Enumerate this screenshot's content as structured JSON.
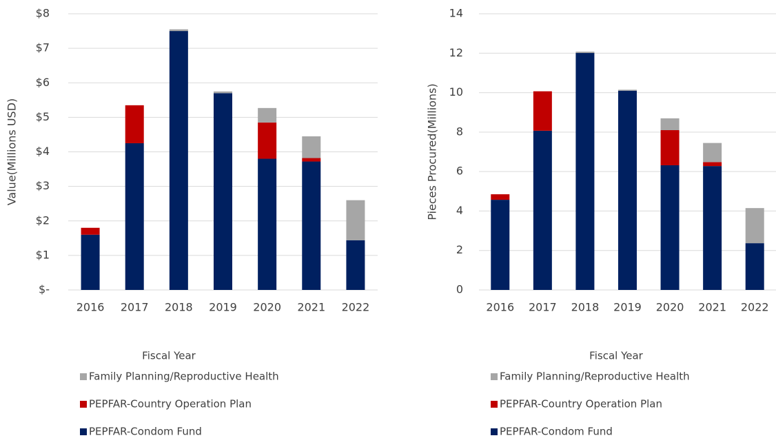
{
  "chart_data": [
    {
      "type": "bar",
      "stacked": true,
      "ylabel": "Value(Millions USD)",
      "xlabel": "Fiscal Year",
      "categories": [
        "2016",
        "2017",
        "2018",
        "2019",
        "2020",
        "2021",
        "2022"
      ],
      "series": [
        {
          "name": "PEPFAR-Condom Fund",
          "color": "#002060",
          "values": [
            1.6,
            4.25,
            7.5,
            5.7,
            3.8,
            3.72,
            1.44
          ]
        },
        {
          "name": "PEPFAR-Country Operation Plan",
          "color": "#c00000",
          "values": [
            0.2,
            1.1,
            0,
            0,
            1.05,
            0.1,
            0
          ]
        },
        {
          "name": "Family Planning/Reproductive Health",
          "color": "#a6a6a6",
          "values": [
            0,
            0,
            0.05,
            0.05,
            0.42,
            0.63,
            1.16
          ]
        }
      ],
      "ylim": [
        0,
        8
      ],
      "yticks": [
        {
          "value": 0,
          "label": "$-"
        },
        {
          "value": 1,
          "label": "$1"
        },
        {
          "value": 2,
          "label": "$2"
        },
        {
          "value": 3,
          "label": "$3"
        },
        {
          "value": 4,
          "label": "$4"
        },
        {
          "value": 5,
          "label": "$5"
        },
        {
          "value": 6,
          "label": "$6"
        },
        {
          "value": 7,
          "label": "$7"
        },
        {
          "value": 8,
          "label": "$8"
        }
      ],
      "grid": true
    },
    {
      "type": "bar",
      "stacked": true,
      "ylabel": "Pieces Procured(Millions)",
      "xlabel": "Fiscal Year",
      "categories": [
        "2016",
        "2017",
        "2018",
        "2019",
        "2020",
        "2021",
        "2022"
      ],
      "series": [
        {
          "name": "PEPFAR-Condom Fund",
          "color": "#002060",
          "values": [
            4.57,
            8.07,
            12.01,
            10.1,
            6.32,
            6.28,
            2.37
          ]
        },
        {
          "name": "PEPFAR-Country Operation Plan",
          "color": "#c00000",
          "values": [
            0.28,
            2.0,
            0,
            0,
            1.78,
            0.2,
            0
          ]
        },
        {
          "name": "Family Planning/Reproductive Health",
          "color": "#a6a6a6",
          "values": [
            0,
            0,
            0.07,
            0.05,
            0.6,
            0.97,
            1.78
          ]
        }
      ],
      "ylim": [
        0,
        14
      ],
      "yticks": [
        0,
        2,
        4,
        6,
        8,
        10,
        12,
        14
      ],
      "grid": true
    }
  ]
}
